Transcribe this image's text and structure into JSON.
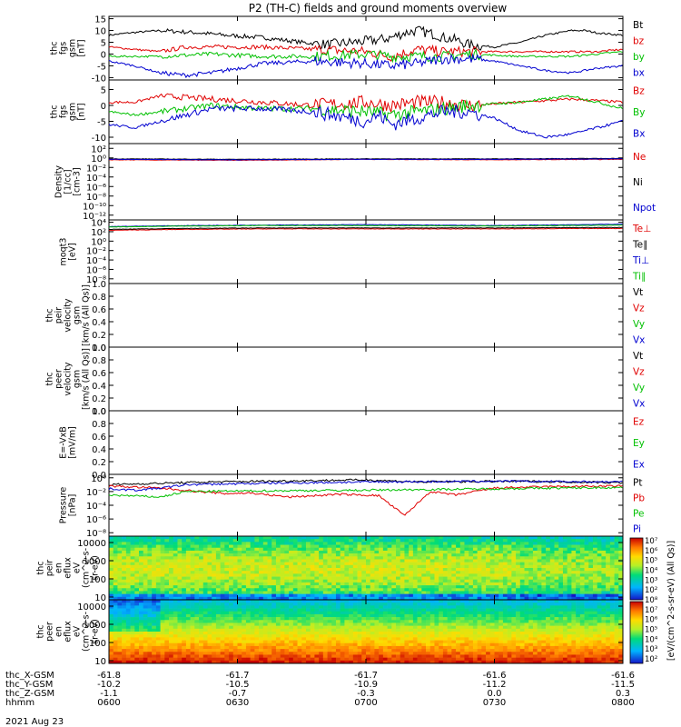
{
  "title": "P2 (TH-C) fields and ground moments overview",
  "date_label": "2021 Aug 23",
  "chart_data": [
    {
      "type": "line",
      "ylabel": [
        "thc",
        "fgs",
        "gsm",
        "[nT]"
      ],
      "y_tick_labels": [
        "15",
        "10",
        "5",
        "0",
        "-5",
        "-10"
      ],
      "y_ticks": [
        15,
        10,
        5,
        0,
        -5,
        -10
      ],
      "ylim": [
        -11,
        16
      ],
      "log": false,
      "series": [
        {
          "name": "Bt",
          "color": "#000000",
          "x": [
            0,
            8,
            20,
            35,
            45,
            60,
            75,
            85,
            95,
            105,
            110,
            115,
            120,
            128,
            130,
            135,
            140,
            150,
            160,
            170,
            180,
            185,
            190,
            200
          ],
          "y": [
            8,
            9,
            10,
            9,
            8,
            7,
            5,
            4,
            5,
            6,
            7,
            9,
            10,
            8,
            7,
            6,
            4,
            3,
            5,
            8,
            10,
            10,
            9,
            8
          ]
        },
        {
          "name": "bz",
          "color": "#e00000",
          "x": [
            0,
            10,
            20,
            30,
            40,
            60,
            80,
            100,
            110,
            120,
            130,
            140,
            160,
            180,
            190,
            200
          ],
          "y": [
            3,
            2,
            1,
            3,
            3,
            3,
            2,
            1,
            -1,
            2,
            1,
            1,
            1,
            1,
            1,
            2
          ]
        },
        {
          "name": "by",
          "color": "#00c000",
          "x": [
            0,
            10,
            20,
            40,
            60,
            80,
            100,
            110,
            120,
            130,
            140,
            160,
            180,
            190,
            200
          ],
          "y": [
            -1,
            -1,
            -1,
            0,
            -1,
            -1,
            0,
            -1,
            -1,
            -1,
            0,
            -1,
            -1,
            0,
            1
          ]
        },
        {
          "name": "bx",
          "color": "#0000d0",
          "x": [
            0,
            10,
            20,
            30,
            40,
            50,
            60,
            80,
            100,
            110,
            120,
            130,
            140,
            150,
            160,
            170,
            180,
            190,
            200
          ],
          "y": [
            -3,
            -5,
            -8,
            -9,
            -8,
            -6,
            -4,
            -3,
            -4,
            -5,
            -4,
            -2,
            -2,
            -3,
            -5,
            -7,
            -8,
            -6,
            -5
          ]
        }
      ]
    },
    {
      "type": "line",
      "ylabel": [
        "thc",
        "fgs",
        "gsm",
        "[nT]"
      ],
      "y_tick_labels": [
        "5",
        "0",
        "-5",
        "-10"
      ],
      "y_ticks": [
        5,
        0,
        -5,
        -10
      ],
      "ylim": [
        -12,
        8
      ],
      "log": false,
      "series": [
        {
          "name": "Bz",
          "color": "#e00000",
          "x": [
            0,
            10,
            20,
            40,
            60,
            80,
            100,
            110,
            120,
            130,
            140,
            160,
            180,
            200
          ],
          "y": [
            1,
            1,
            3,
            2,
            1,
            0,
            1,
            0,
            1,
            1,
            0,
            1,
            2,
            1
          ]
        },
        {
          "name": "By",
          "color": "#00c000",
          "x": [
            0,
            10,
            20,
            40,
            60,
            80,
            100,
            110,
            120,
            130,
            140,
            160,
            180,
            200
          ],
          "y": [
            -2,
            -3,
            -2,
            0,
            -1,
            -1,
            -2,
            -3,
            -2,
            -1,
            0,
            1,
            3,
            -1
          ]
        },
        {
          "name": "Bx",
          "color": "#0000d0",
          "x": [
            0,
            10,
            20,
            30,
            40,
            60,
            80,
            100,
            105,
            110,
            120,
            130,
            140,
            150,
            160,
            170,
            180,
            190,
            200
          ],
          "y": [
            -6,
            -7,
            -5,
            -3,
            -1,
            -1,
            -2,
            -5,
            -3,
            -6,
            -4,
            -2,
            -2,
            -4,
            -8,
            -10,
            -9,
            -7,
            -5
          ]
        }
      ]
    },
    {
      "type": "line",
      "ylabel": [
        "Density",
        "[1/cc]",
        "[cm-3]"
      ],
      "y_tick_labels": [
        "10²",
        "10⁰",
        "10⁻²",
        "10⁻⁴",
        "10⁻⁶",
        "10⁻⁸",
        "10⁻¹⁰",
        "10⁻¹²"
      ],
      "y_ticks": [
        2,
        0,
        -2,
        -4,
        -6,
        -8,
        -10,
        -12
      ],
      "ylim": [
        -13,
        3
      ],
      "log": true,
      "series": [
        {
          "name": "Ne",
          "color": "#e00000",
          "x": [
            0,
            50,
            100,
            150,
            200
          ],
          "y": [
            -0.4,
            -0.5,
            -0.3,
            -0.4,
            -0.3
          ]
        },
        {
          "name": "Ni",
          "color": "#000000",
          "x": [
            0,
            50,
            100,
            150,
            200
          ],
          "y": [
            -0.2,
            -0.3,
            -0.2,
            -0.2,
            -0.1
          ]
        },
        {
          "name": "Npot",
          "color": "#0000d0",
          "x": [
            0,
            50,
            100,
            150,
            200
          ],
          "y": [
            -0.3,
            -0.4,
            -0.3,
            -0.3,
            -0.2
          ]
        }
      ]
    },
    {
      "type": "line",
      "ylabel": [
        "moqt3",
        "[eV]"
      ],
      "y_tick_labels": [
        "10⁴",
        "10²",
        "10⁰",
        "10⁻²",
        "10⁻⁴",
        "10⁻⁶",
        "10⁻⁸"
      ],
      "y_ticks": [
        4,
        2,
        0,
        -2,
        -4,
        -6,
        -8
      ],
      "ylim": [
        -9,
        4.5
      ],
      "log": true,
      "series": [
        {
          "name": "Te⊥",
          "color": "#e00000",
          "x": [
            0,
            30,
            60,
            100,
            150,
            200
          ],
          "y": [
            2.3,
            2.5,
            2.6,
            2.6,
            2.6,
            2.7
          ]
        },
        {
          "name": "Te∥",
          "color": "#000000",
          "x": [
            0,
            30,
            60,
            100,
            150,
            200
          ],
          "y": [
            2.5,
            2.7,
            2.8,
            2.8,
            2.8,
            2.9
          ]
        },
        {
          "name": "Ti⊥",
          "color": "#0000d0",
          "x": [
            0,
            30,
            60,
            100,
            150,
            200
          ],
          "y": [
            3.1,
            3.3,
            3.4,
            3.5,
            3.3,
            3.6
          ]
        },
        {
          "name": "Ti∥",
          "color": "#00c000",
          "x": [
            0,
            30,
            60,
            100,
            150,
            200
          ],
          "y": [
            3.0,
            3.2,
            3.3,
            3.3,
            3.2,
            3.4
          ]
        }
      ]
    },
    {
      "type": "line",
      "ylabel": [
        "thc",
        "peir",
        "velocity",
        "gsm",
        "[km/s (All Qs)]"
      ],
      "y_tick_labels": [
        "1.0",
        "0.8",
        "0.6",
        "0.4",
        "0.2",
        "0.0"
      ],
      "y_ticks": [
        1.0,
        0.8,
        0.6,
        0.4,
        0.2,
        0.0
      ],
      "ylim": [
        0,
        1
      ],
      "log": false,
      "series": [
        {
          "name": "Vt",
          "color": "#000000",
          "x": [],
          "y": []
        },
        {
          "name": "Vz",
          "color": "#e00000",
          "x": [],
          "y": []
        },
        {
          "name": "Vy",
          "color": "#00c000",
          "x": [],
          "y": []
        },
        {
          "name": "Vx",
          "color": "#0000d0",
          "x": [],
          "y": []
        }
      ]
    },
    {
      "type": "line",
      "ylabel": [
        "thc",
        "peer",
        "velocity",
        "gsm",
        "[km/s (All Qs)]"
      ],
      "y_tick_labels": [
        "1.0",
        "0.8",
        "0.6",
        "0.4",
        "0.2",
        "0.0"
      ],
      "y_ticks": [
        1.0,
        0.8,
        0.6,
        0.4,
        0.2,
        0.0
      ],
      "ylim": [
        0,
        1
      ],
      "log": false,
      "series": [
        {
          "name": "Vt",
          "color": "#000000",
          "x": [],
          "y": []
        },
        {
          "name": "Vz",
          "color": "#e00000",
          "x": [],
          "y": []
        },
        {
          "name": "Vy",
          "color": "#00c000",
          "x": [],
          "y": []
        },
        {
          "name": "Vx",
          "color": "#0000d0",
          "x": [],
          "y": []
        }
      ]
    },
    {
      "type": "line",
      "ylabel": [
        "E=-VxB",
        "[mV/m]"
      ],
      "y_tick_labels": [
        "1.0",
        "0.8",
        "0.6",
        "0.4",
        "0.2",
        "0.0"
      ],
      "y_ticks": [
        1.0,
        0.8,
        0.6,
        0.4,
        0.2,
        0.0
      ],
      "ylim": [
        0,
        1
      ],
      "log": false,
      "series": [
        {
          "name": "Ez",
          "color": "#e00000",
          "x": [],
          "y": []
        },
        {
          "name": "Ey",
          "color": "#00c000",
          "x": [],
          "y": []
        },
        {
          "name": "Ex",
          "color": "#0000d0",
          "x": [],
          "y": []
        }
      ]
    },
    {
      "type": "line",
      "ylabel": [
        "Pressure",
        "[nPa]"
      ],
      "y_tick_labels": [
        "10⁰",
        "10⁻²",
        "10⁻⁴",
        "10⁻⁶",
        "10⁻⁸"
      ],
      "y_ticks": [
        0,
        -2,
        -4,
        -6,
        -8
      ],
      "ylim": [
        -8.5,
        0.5
      ],
      "log": true,
      "series": [
        {
          "name": "Pt",
          "color": "#000000",
          "x": [
            0,
            40,
            80,
            100,
            120,
            160,
            200
          ],
          "y": [
            -1.0,
            -0.6,
            -0.4,
            -0.3,
            -0.6,
            -0.5,
            -0.7
          ]
        },
        {
          "name": "Pb",
          "color": "#e00000",
          "x": [
            0,
            20,
            35,
            45,
            55,
            70,
            90,
            105,
            115,
            125,
            135,
            150,
            170,
            200
          ],
          "y": [
            -1.2,
            -1.5,
            -2.0,
            -2.3,
            -2.2,
            -2.8,
            -2.4,
            -2.6,
            -5.5,
            -2.0,
            -2.5,
            -1.5,
            -1.3,
            -1.2
          ]
        },
        {
          "name": "Pe",
          "color": "#00c000",
          "x": [
            0,
            20,
            30,
            60,
            100,
            150,
            200
          ],
          "y": [
            -2.5,
            -2.8,
            -2.0,
            -1.9,
            -1.8,
            -1.6,
            -1.4
          ]
        },
        {
          "name": "Pi",
          "color": "#0000d0",
          "x": [
            0,
            10,
            20,
            30,
            60,
            100,
            150,
            200
          ],
          "y": [
            -1.6,
            -1.8,
            -1.5,
            -1.0,
            -0.8,
            -0.6,
            -0.5,
            -0.6
          ]
        }
      ]
    },
    {
      "type": "heatmap",
      "ylabel": [
        "thc",
        "peir",
        "en",
        "eflux",
        "eV",
        "(cm^2-s-",
        "sr-eV)"
      ],
      "y_tick_labels": [
        "10000",
        "1000",
        "100",
        "10"
      ],
      "y_ticks": [
        4,
        3,
        2,
        1
      ],
      "ylim": [
        0.85,
        4.35
      ],
      "log": true,
      "dominant_level": 5.5
    },
    {
      "type": "heatmap",
      "ylabel": [
        "thc",
        "peer",
        "en",
        "eflux",
        "eV",
        "(cm^2-s-",
        "sr-eV)"
      ],
      "y_tick_labels": [
        "10000",
        "1000",
        "100",
        "10"
      ],
      "y_ticks": [
        4,
        3,
        2,
        1
      ],
      "ylim": [
        0.85,
        4.35
      ],
      "log": true,
      "dominant_level": 6.2
    }
  ],
  "colorbar": {
    "tick_labels": [
      "10⁷",
      "10⁶",
      "10⁵",
      "10⁴",
      "10³",
      "10²",
      "10⁸",
      "10⁷",
      "10⁶",
      "10⁵",
      "10⁴",
      "10³",
      "10²"
    ],
    "label": "[eV/(cm^2-s-sr-eV) (All Qs)]"
  },
  "x_axis": {
    "time_range": [
      "0600",
      "0800"
    ],
    "rows": [
      {
        "label": "thc_X-GSM",
        "values": [
          "-61.8",
          "-61.7",
          "-61.7",
          "-61.6",
          "-61.6"
        ]
      },
      {
        "label": "thc_Y-GSM",
        "values": [
          "-10.2",
          "-10.5",
          "-10.9",
          "-11.2",
          "-11.5"
        ]
      },
      {
        "label": "thc_Z-GSM",
        "values": [
          "-1.1",
          "-0.7",
          "-0.3",
          "0.0",
          "0.3"
        ]
      },
      {
        "label": "hhmm",
        "values": [
          "0600",
          "0630",
          "0700",
          "0730",
          "0800"
        ]
      }
    ]
  }
}
